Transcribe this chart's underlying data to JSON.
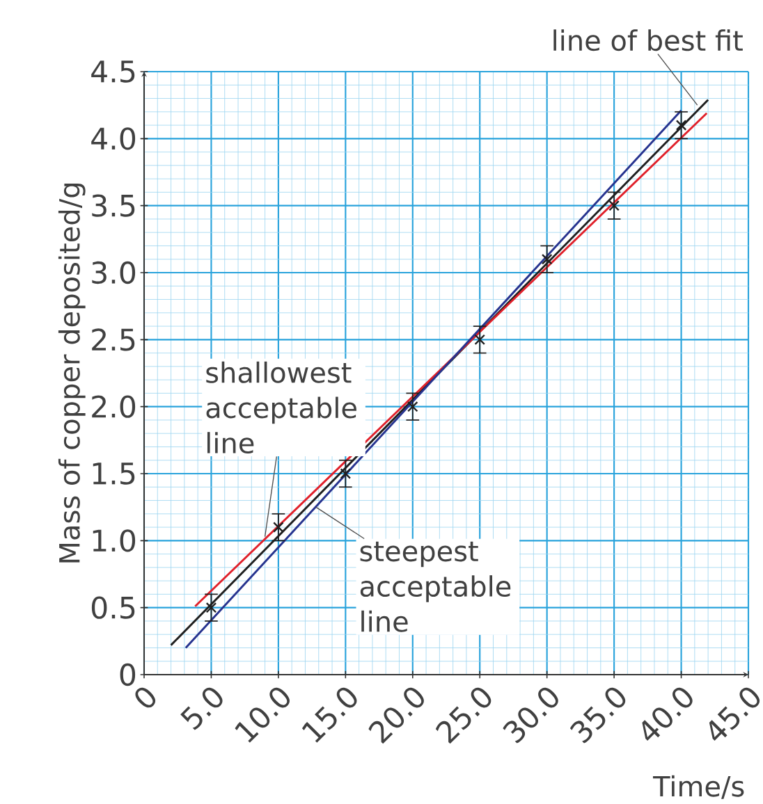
{
  "chart_data": {
    "type": "line",
    "xlabel": "Time/s",
    "ylabel": "Mass of copper deposited/g",
    "xlim": [
      0,
      45
    ],
    "ylim": [
      0,
      4.5
    ],
    "xticks": [
      {
        "value": 0,
        "label": "0"
      },
      {
        "value": 1,
        "label": null
      },
      {
        "value": 2,
        "label": null
      },
      {
        "value": 3,
        "label": null
      },
      {
        "value": 4,
        "label": null
      },
      {
        "value": 5,
        "label": "5.0"
      },
      {
        "value": 6,
        "label": null
      },
      {
        "value": 7,
        "label": null
      },
      {
        "value": 8,
        "label": null
      },
      {
        "value": 9,
        "label": null
      },
      {
        "value": 10,
        "label": "10.0"
      },
      {
        "value": 11,
        "label": null
      },
      {
        "value": 12,
        "label": null
      },
      {
        "value": 13,
        "label": null
      },
      {
        "value": 14,
        "label": null
      },
      {
        "value": 15,
        "label": "15.0"
      },
      {
        "value": 16,
        "label": null
      },
      {
        "value": 17,
        "label": null
      },
      {
        "value": 18,
        "label": null
      },
      {
        "value": 19,
        "label": null
      },
      {
        "value": 20,
        "label": "20.0"
      },
      {
        "value": 21,
        "label": null
      },
      {
        "value": 22,
        "label": null
      },
      {
        "value": 23,
        "label": null
      },
      {
        "value": 24,
        "label": null
      },
      {
        "value": 25,
        "label": "25.0"
      },
      {
        "value": 26,
        "label": null
      },
      {
        "value": 27,
        "label": null
      },
      {
        "value": 28,
        "label": null
      },
      {
        "value": 29,
        "label": null
      },
      {
        "value": 30,
        "label": "30.0"
      },
      {
        "value": 31,
        "label": null
      },
      {
        "value": 32,
        "label": null
      },
      {
        "value": 33,
        "label": null
      },
      {
        "value": 34,
        "label": null
      },
      {
        "value": 35,
        "label": "35.0"
      },
      {
        "value": 36,
        "label": null
      },
      {
        "value": 37,
        "label": null
      },
      {
        "value": 38,
        "label": null
      },
      {
        "value": 39,
        "label": null
      },
      {
        "value": 40,
        "label": "40.0"
      },
      {
        "value": 41,
        "label": null
      },
      {
        "value": 42,
        "label": null
      },
      {
        "value": 43,
        "label": null
      },
      {
        "value": 44,
        "label": null
      },
      {
        "value": 45,
        "label": "45.0"
      }
    ],
    "yticks": [
      0,
      {
        "value": 0.1,
        "label": null
      },
      {
        "value": 0.2,
        "label": null
      },
      {
        "value": 0.3,
        "label": null
      },
      {
        "value": 0.4,
        "label": null
      },
      0.5,
      {
        "value": 0.6,
        "label": null
      },
      {
        "value": 0.7,
        "label": null
      },
      {
        "value": 0.8,
        "label": null
      },
      {
        "value": 0.9,
        "label": null
      },
      {
        "value": 1,
        "label": "1.0"
      },
      {
        "value": 1.1,
        "label": null
      },
      {
        "value": 1.2,
        "label": null
      },
      {
        "value": 1.3,
        "label": null
      },
      {
        "value": 1.4,
        "label": null
      },
      1.5,
      {
        "value": 1.6,
        "label": null
      },
      {
        "value": 1.7,
        "label": null
      },
      {
        "value": 1.8,
        "label": null
      },
      {
        "value": 1.9,
        "label": null
      },
      {
        "value": 2,
        "label": "2.0"
      },
      {
        "value": 2.1,
        "label": null
      },
      {
        "value": 2.2,
        "label": null
      },
      {
        "value": 2.3,
        "label": null
      },
      {
        "value": 2.4,
        "label": null
      },
      2.5,
      {
        "value": 2.6,
        "label": null
      },
      {
        "value": 2.7,
        "label": null
      },
      {
        "value": 2.8,
        "label": null
      },
      {
        "value": 2.9,
        "label": null
      },
      {
        "value": 3,
        "label": "3.0"
      },
      {
        "value": 3.1,
        "label": null
      },
      {
        "value": 3.2,
        "label": null
      },
      {
        "value": 3.3,
        "label": null
      },
      {
        "value": 3.4,
        "label": null
      },
      3.5,
      {
        "value": 3.6,
        "label": null
      },
      {
        "value": 3.7,
        "label": null
      },
      {
        "value": 3.8,
        "label": null
      },
      {
        "value": 3.9,
        "label": null
      },
      {
        "value": 4,
        "label": "4.0"
      },
      {
        "value": 4.1,
        "label": null
      },
      {
        "value": 4.2,
        "label": null
      },
      {
        "value": 4.3,
        "label": null
      },
      {
        "value": 4.4,
        "label": null
      },
      4.5
    ],
    "grid": true,
    "series": [
      {
        "color": "#1f1f1f",
        "x": [
          2.0,
          42.0
        ],
        "values": [
          0.22,
          4.29
        ]
      },
      {
        "color": "#e0202a",
        "x": [
          3.8,
          41.9
        ],
        "values": [
          0.51,
          4.19
        ]
      },
      {
        "color": "#26338f",
        "x": [
          3.1,
          40.0
        ],
        "values": [
          0.2,
          4.21
        ]
      },
      {
        "type": "scatter",
        "marker": "cross",
        "color": "#1f1f1f",
        "x": [
          5,
          10,
          15,
          20,
          25,
          30,
          35,
          40
        ],
        "values": [
          0.5,
          1.1,
          1.5,
          2.0,
          2.5,
          3.1,
          3.5,
          4.1
        ],
        "errors": [
          0.1,
          0.1,
          0.1,
          0.1,
          0.1,
          0.1,
          0.1,
          0.1
        ]
      }
    ],
    "annotations": [
      {
        "text": "line of best fit",
        "x": 41.2,
        "y": 4.25
      },
      {
        "text": "shallowest acceptable line",
        "x": 9,
        "y": 1.03
      },
      {
        "text": "steepest acceptable line",
        "x": 12.8,
        "y": 1.25
      }
    ]
  }
}
